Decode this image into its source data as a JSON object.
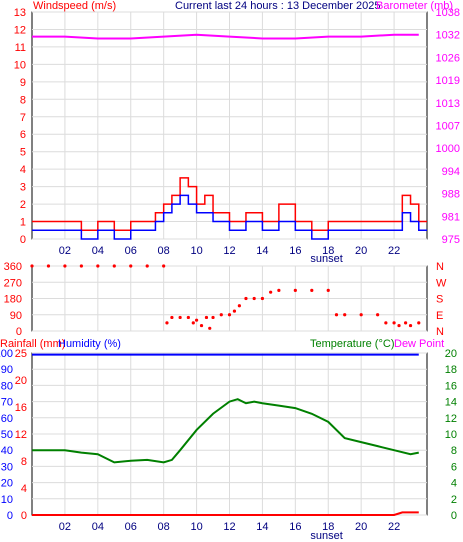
{
  "header": {
    "left_title": "Windspeed (m/s)",
    "center_title": "Current last 24 hours : 13 December 2025",
    "right_title": "Barometer (mb)"
  },
  "colors": {
    "wind": "#ff0000",
    "wind_avg": "#0000ff",
    "barometer": "#ff00ff",
    "direction": "#ff0000",
    "rainfall": "#ff0000",
    "humidity": "#0000ff",
    "temperature": "#008000",
    "dewpoint": "#ff00ff",
    "grid": "#dcdcdc",
    "axis": "#000000"
  },
  "chart_data": [
    {
      "type": "line",
      "panel": "wind-barometer",
      "x_ticks": [
        "02",
        "04",
        "06",
        "08",
        "10",
        "12",
        "14",
        "16",
        "18",
        "20",
        "22"
      ],
      "annotation": "sunset",
      "left_axis": {
        "label": "Windspeed (m/s)",
        "ticks": [
          0,
          1,
          2,
          3,
          4,
          5,
          6,
          7,
          8,
          9,
          10,
          11,
          12,
          13
        ],
        "ylim": [
          0,
          13
        ]
      },
      "right_axis": {
        "label": "Barometer (mb)",
        "ticks": [
          975,
          981,
          988,
          994,
          1000,
          1007,
          1013,
          1019,
          1026,
          1032,
          1038
        ],
        "ylim": [
          975,
          1038
        ]
      },
      "series": [
        {
          "name": "Windspeed",
          "axis": "left",
          "x": [
            0,
            1,
            2,
            3,
            4,
            5,
            6,
            7,
            7.5,
            8,
            8.5,
            9,
            9.5,
            10,
            10.5,
            11,
            12,
            13,
            14,
            15,
            16,
            17,
            18,
            19,
            20,
            21,
            22,
            22.5,
            23,
            23.5
          ],
          "values": [
            1,
            1,
            1,
            0.5,
            1,
            0.5,
            1,
            1,
            1.5,
            2,
            2.5,
            3.5,
            3,
            2,
            2.5,
            1.5,
            1,
            1.5,
            1,
            2,
            1,
            0.5,
            1,
            1,
            1,
            1,
            1,
            2.5,
            2,
            1
          ]
        },
        {
          "name": "Wind average",
          "axis": "left",
          "x": [
            0,
            1,
            2,
            3,
            4,
            5,
            6,
            7,
            7.5,
            8,
            8.5,
            9,
            9.5,
            10,
            10.5,
            11,
            12,
            13,
            14,
            15,
            16,
            17,
            18,
            19,
            20,
            21,
            22,
            22.5,
            23,
            23.5
          ],
          "values": [
            0.5,
            0.5,
            0.5,
            0,
            0.5,
            0,
            0.5,
            0.5,
            1,
            1.5,
            2,
            2.5,
            2,
            1.5,
            1.5,
            1,
            0.5,
            1,
            0.5,
            1,
            0.5,
            0,
            0.5,
            0.5,
            0.5,
            0.5,
            0.5,
            1.5,
            1,
            0.5
          ]
        },
        {
          "name": "Barometer",
          "axis": "right",
          "x": [
            0,
            2,
            4,
            5,
            6,
            8,
            10,
            12,
            14,
            16,
            18,
            20,
            22,
            23.5
          ],
          "values": [
            1031.5,
            1031.5,
            1031,
            1031,
            1031,
            1031.5,
            1032,
            1031.5,
            1031,
            1031,
            1031.5,
            1031.5,
            1032,
            1032
          ]
        }
      ]
    },
    {
      "type": "scatter",
      "panel": "wind-direction",
      "left_axis": {
        "ticks": [
          0,
          90,
          180,
          270,
          360
        ],
        "ylim": [
          0,
          360
        ]
      },
      "right_axis": {
        "ticks": [
          "N",
          "E",
          "S",
          "W",
          "N"
        ]
      },
      "series": [
        {
          "name": "Wind direction",
          "points": [
            [
              0,
              360
            ],
            [
              1,
              360
            ],
            [
              2,
              360
            ],
            [
              3,
              360
            ],
            [
              4,
              360
            ],
            [
              5,
              360
            ],
            [
              6,
              360
            ],
            [
              7,
              360
            ],
            [
              8,
              360
            ],
            [
              8.2,
              45
            ],
            [
              8.5,
              75
            ],
            [
              9,
              75
            ],
            [
              9.5,
              75
            ],
            [
              9.8,
              45
            ],
            [
              10,
              60
            ],
            [
              10.3,
              30
            ],
            [
              10.6,
              75
            ],
            [
              10.8,
              15
            ],
            [
              11,
              75
            ],
            [
              11.5,
              90
            ],
            [
              12,
              90
            ],
            [
              12.3,
              110
            ],
            [
              12.6,
              140
            ],
            [
              13,
              180
            ],
            [
              13.5,
              180
            ],
            [
              14,
              180
            ],
            [
              14.5,
              215
            ],
            [
              15,
              225
            ],
            [
              16,
              225
            ],
            [
              17,
              225
            ],
            [
              18,
              225
            ],
            [
              18.5,
              90
            ],
            [
              19,
              90
            ],
            [
              20,
              90
            ],
            [
              21,
              90
            ],
            [
              21.5,
              45
            ],
            [
              22,
              45
            ],
            [
              22.3,
              30
            ],
            [
              22.7,
              45
            ],
            [
              23,
              30
            ],
            [
              23.5,
              45
            ]
          ]
        }
      ]
    },
    {
      "type": "line",
      "panel": "rain-humidity-temperature",
      "x_ticks": [
        "02",
        "04",
        "06",
        "08",
        "10",
        "12",
        "14",
        "16",
        "18",
        "20",
        "22"
      ],
      "annotation": "sunset",
      "legend": [
        "Rainfall (mm)",
        "Humidity (%)",
        "Temperature (°C)",
        "Dew Point"
      ],
      "left_axis_rain": {
        "label": "Rainfall (mm",
        "ticks": [
          0,
          4,
          8,
          12,
          16,
          20,
          25
        ]
      },
      "left_axis_humidity": {
        "label": "Humidity (%)",
        "ticks": [
          0,
          10,
          20,
          30,
          40,
          50,
          60,
          70,
          80,
          90,
          100
        ],
        "ylim": [
          0,
          100
        ]
      },
      "right_axis": {
        "label": "Temperature (°C)",
        "ticks": [
          0,
          2,
          4,
          6,
          8,
          10,
          12,
          14,
          16,
          18,
          20
        ],
        "ylim": [
          0,
          20
        ]
      },
      "series": [
        {
          "name": "Temperature",
          "x": [
            0,
            1,
            2,
            3,
            4,
            5,
            6,
            7,
            8,
            8.5,
            9,
            10,
            11,
            12,
            12.5,
            13,
            13.5,
            14,
            15,
            16,
            17,
            18,
            19,
            20,
            21,
            22,
            23,
            23.5
          ],
          "values": [
            8,
            8,
            8,
            7.7,
            7.5,
            6.5,
            6.7,
            6.8,
            6.5,
            6.8,
            8,
            10.5,
            12.5,
            14,
            14.3,
            13.8,
            14,
            13.8,
            13.5,
            13.2,
            12.5,
            11.5,
            9.5,
            9,
            8.5,
            8,
            7.5,
            7.7
          ]
        },
        {
          "name": "Humidity",
          "x": [
            0,
            23.5
          ],
          "values": [
            99,
            99
          ]
        },
        {
          "name": "Rainfall",
          "x": [
            0,
            22,
            22.5,
            23.5
          ],
          "values": [
            0,
            0,
            0.4,
            0.4
          ]
        }
      ]
    }
  ]
}
